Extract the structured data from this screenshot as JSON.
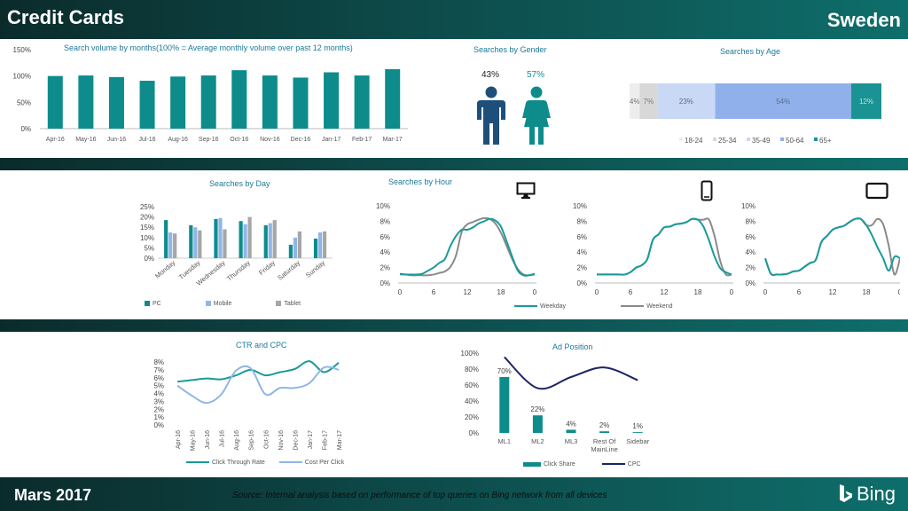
{
  "header": {
    "title": "Credit Cards",
    "country": "Sweden"
  },
  "footer": {
    "date": "Mars 2017",
    "source": "Source: Internal analysis based on performance of top queries on Bing network from all devices",
    "brand": "Bing"
  },
  "colors": {
    "teal": "#0e8c8c",
    "light_blue": "#8fb6e8",
    "gray": "#a6a6a6",
    "navy": "#1a2466",
    "pink": "#0e8c8c",
    "title": "#1a7a9a"
  },
  "chart_data": [
    {
      "id": "volume",
      "type": "bar",
      "title": "Search volume by months(100% = Average monthly volume over past 12 months)",
      "categories": [
        "Apr-16",
        "May-16",
        "Jun-16",
        "Jul-16",
        "Aug-16",
        "Sep-16",
        "Oct-16",
        "Nov-16",
        "Dec-16",
        "Jan-17",
        "Feb-17",
        "Mar-17"
      ],
      "values": [
        100,
        101,
        98,
        91,
        99,
        101,
        111,
        101,
        97,
        107,
        101,
        113
      ],
      "yticks": [
        "0%",
        "50%",
        "100%",
        "150%"
      ],
      "ylim": [
        0,
        150
      ]
    },
    {
      "id": "gender",
      "type": "pictograph",
      "title": "Searches by Gender",
      "categories": [
        "Male",
        "Female"
      ],
      "labels": [
        "43%",
        "57%"
      ],
      "values": [
        43,
        57
      ]
    },
    {
      "id": "age",
      "type": "stacked-bar",
      "title": "Searches by Age",
      "categories": [
        "18-24",
        "25-34",
        "35-49",
        "50-64",
        "65+"
      ],
      "labels": [
        "4%",
        "7%",
        "23%",
        "54%",
        "12%"
      ],
      "values": [
        4,
        7,
        23,
        54,
        12
      ],
      "colors": [
        "#ededed",
        "#d8d8d8",
        "#c9d8f4",
        "#8fb0ea",
        "#1b9394"
      ]
    },
    {
      "id": "day",
      "type": "bar",
      "title": "Searches by Day",
      "categories": [
        "Monday",
        "Tuesday",
        "Wednesday",
        "Thursday",
        "Friday",
        "Saturday",
        "Sunday"
      ],
      "series": [
        {
          "name": "PC",
          "values": [
            18.5,
            16,
            19,
            18,
            16,
            6.5,
            9.5
          ]
        },
        {
          "name": "Mobile",
          "values": [
            12.5,
            15,
            19.5,
            16.5,
            17,
            10,
            12.5
          ]
        },
        {
          "name": "Tablet",
          "values": [
            12,
            13.5,
            14,
            20,
            18.5,
            13,
            13
          ]
        }
      ],
      "yticks": [
        "0%",
        "5%",
        "10%",
        "15%",
        "20%",
        "25%"
      ],
      "ylim": [
        0,
        25
      ]
    },
    {
      "id": "hour",
      "type": "line",
      "title": "Searches by Hour",
      "devices": [
        "pc-icon",
        "mobile-icon",
        "tablet-icon"
      ],
      "x": [
        0,
        1,
        2,
        3,
        4,
        5,
        6,
        7,
        8,
        9,
        10,
        11,
        12,
        13,
        14,
        15,
        16,
        17,
        18,
        19,
        20,
        21,
        22,
        23
      ],
      "xticks": [
        "0",
        "6",
        "12",
        "18",
        "0"
      ],
      "yticks": [
        "0%",
        "2%",
        "4%",
        "6%",
        "8%",
        "10%"
      ],
      "ylim": [
        0,
        10
      ],
      "legend": [
        "Weekday",
        "Weekend"
      ],
      "panels": [
        {
          "weekday": [
            1.2,
            1.1,
            1.1,
            1.1,
            1.2,
            1.6,
            2.0,
            2.6,
            3.1,
            4.8,
            6.1,
            6.9,
            6.9,
            7.2,
            7.7,
            8.0,
            8.3,
            8.1,
            7.3,
            5.4,
            3.4,
            1.6,
            1.0,
            1.0
          ],
          "weekend": [
            1.1,
            1.1,
            1.0,
            1.0,
            1.0,
            1.0,
            1.1,
            1.3,
            1.5,
            2.1,
            3.6,
            6.6,
            7.6,
            7.9,
            8.2,
            8.4,
            8.3,
            7.7,
            6.5,
            4.8,
            3.1,
            1.8,
            1.1,
            1.0
          ]
        },
        {
          "weekday": [
            1.1,
            1.1,
            1.1,
            1.1,
            1.1,
            1.1,
            1.4,
            2.0,
            2.3,
            3.1,
            5.6,
            6.3,
            7.2,
            7.3,
            7.6,
            7.7,
            7.9,
            8.3,
            8.2,
            7.3,
            5.5,
            3.4,
            1.9,
            1.4
          ],
          "weekend": [
            1.1,
            1.1,
            1.1,
            1.1,
            1.1,
            1.1,
            1.4,
            2.0,
            2.3,
            3.1,
            5.6,
            6.3,
            7.2,
            7.3,
            7.6,
            7.7,
            7.9,
            8.3,
            8.2,
            8.2,
            8.2,
            6.0,
            2.8,
            1.1
          ]
        },
        {
          "weekday": [
            3.2,
            1.2,
            1.1,
            1.1,
            1.2,
            1.5,
            1.6,
            2.1,
            2.6,
            3.0,
            5.3,
            6.1,
            6.9,
            7.2,
            7.4,
            7.9,
            8.3,
            8.3,
            7.5,
            6.2,
            4.6,
            3.2,
            1.6,
            3.4
          ],
          "weekend": [
            3.2,
            1.2,
            1.1,
            1.1,
            1.2,
            1.5,
            1.6,
            2.1,
            2.6,
            3.0,
            5.3,
            6.1,
            6.9,
            7.2,
            7.4,
            7.9,
            8.3,
            8.3,
            7.5,
            7.5,
            8.3,
            7.6,
            4.8,
            1.1
          ]
        }
      ]
    },
    {
      "id": "ctr",
      "type": "line",
      "title": "CTR and CPC",
      "categories": [
        "Apr-16",
        "May-16",
        "Jun-16",
        "Jul-16",
        "Aug-16",
        "Sep-16",
        "Oct-16",
        "Nov-16",
        "Dec-16",
        "Jan-17",
        "Feb-17",
        "Mar-17"
      ],
      "series": [
        {
          "name": "Click Through Rate",
          "values": [
            5.5,
            5.7,
            5.9,
            5.8,
            6.3,
            7.0,
            6.3,
            6.7,
            7.1,
            8.1,
            6.7,
            7.9
          ]
        },
        {
          "name": "Cost Per Click",
          "values": [
            5.0,
            3.7,
            2.8,
            3.9,
            6.9,
            7.2,
            3.9,
            4.7,
            4.7,
            5.3,
            7.3,
            7.0
          ]
        }
      ],
      "yticks": [
        "0%",
        "1%",
        "2%",
        "3%",
        "4%",
        "5%",
        "6%",
        "7%",
        "8%"
      ],
      "ylim": [
        0,
        8
      ]
    },
    {
      "id": "adpos",
      "type": "bar",
      "title": "Ad Position",
      "categories": [
        "ML1",
        "ML2",
        "ML3",
        "Rest Of MainLine",
        "Sidebar"
      ],
      "category_lines": [
        [
          "ML1"
        ],
        [
          "ML2"
        ],
        [
          "ML3"
        ],
        [
          "Rest Of",
          "MainLine"
        ],
        [
          "Sidebar"
        ]
      ],
      "series": [
        {
          "name": "Click Share",
          "values": [
            70,
            22,
            4,
            2,
            1
          ],
          "labels": [
            "70%",
            "22%",
            "4%",
            "2%",
            "1%"
          ]
        },
        {
          "name": "CPC",
          "values": [
            95,
            56,
            70,
            82,
            66
          ]
        }
      ],
      "yticks": [
        "0%",
        "20%",
        "40%",
        "60%",
        "80%",
        "100%"
      ],
      "ylim": [
        0,
        100
      ]
    }
  ]
}
